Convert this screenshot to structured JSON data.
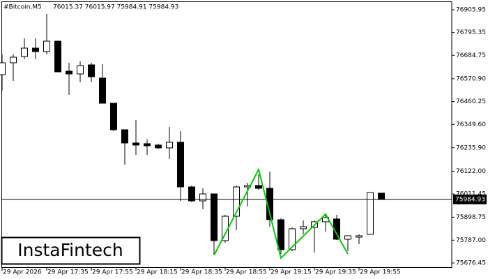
{
  "chart_data": {
    "type": "candlestick",
    "symbol": "#Bitcoin,M5",
    "info": "76015.37 76015.97 75984.91 75984.93",
    "watermark": "InstaFintech",
    "categories": [
      "29 Apr 2026",
      null,
      null,
      null,
      "29 Apr 17:35",
      null,
      null,
      null,
      "29 Apr 17:55",
      null,
      null,
      null,
      "29 Apr 18:15",
      null,
      null,
      null,
      "29 Apr 18:35",
      null,
      null,
      null,
      "29 Apr 18:55",
      null,
      null,
      null,
      "29 Apr 19:15",
      null,
      null,
      null,
      "29 Apr 19:35",
      null,
      null,
      null,
      "29 Apr 19:55",
      null,
      null
    ],
    "open": [
      76591.0,
      76648.6,
      76679.1,
      76719.7,
      76702.8,
      76753.6,
      76607.9,
      76594.4,
      76638.4,
      76574.1,
      76452.1,
      76323.4,
      76259.1,
      76255.7,
      76248.9,
      76235.4,
      76262.5,
      76045.7,
      75977.9,
      76011.8,
      75784.9,
      75903.4,
      76045.7,
      76052.4,
      76038.9,
      75886.5,
      75740.9,
      75842.5,
      75849.2,
      75876.3,
      75889.9,
      75791.7,
      75801.8,
      75815.4,
      76015.37
    ],
    "high": [
      76689.2,
      76689.2,
      76767.1,
      76767.1,
      76885.7,
      76753.6,
      76648.6,
      76655.3,
      76648.6,
      76641.8,
      76452.1,
      76323.4,
      76370.8,
      76276.0,
      76255.7,
      76337.0,
      76316.6,
      76052.4,
      76038.9,
      76011.8,
      75910.2,
      76052.4,
      76066.0,
      76106.6,
      76120.2,
      75893.3,
      75849.2,
      75883.1,
      75883.1,
      75910.2,
      75910.2,
      75808.6,
      75815.4,
      76018.6,
      76015.97
    ],
    "low": [
      76513.1,
      76560.5,
      76665.5,
      76665.5,
      76689.2,
      76604.5,
      76492.8,
      76553.7,
      76553.7,
      76452.1,
      76316.6,
      76154.1,
      76201.5,
      76201.5,
      76228.6,
      76181.2,
      75977.9,
      75971.2,
      75937.3,
      75713.8,
      75774.7,
      75835.7,
      75950.8,
      76032.1,
      75852.6,
      75720.5,
      75734.1,
      75815.4,
      75727.3,
      75828.9,
      75788.3,
      75734.1,
      75767.9,
      75815.4,
      75984.91
    ],
    "close": [
      76648.6,
      76675.7,
      76719.7,
      76702.8,
      76753.6,
      76604.5,
      76594.4,
      76635.0,
      76580.8,
      76452.1,
      76323.4,
      76259.1,
      76248.9,
      76245.5,
      76235.4,
      76262.5,
      76045.7,
      75977.9,
      76011.8,
      75784.9,
      75903.4,
      76045.7,
      76052.4,
      76038.9,
      75886.5,
      75740.9,
      75842.5,
      75852.6,
      75876.3,
      75896.7,
      75791.7,
      75808.6,
      75808.6,
      76018.6,
      75984.93
    ],
    "up_color": "#ffffff",
    "down_color": "#000000",
    "pattern": {
      "color": "#00cc00",
      "index": [
        19,
        23,
        25,
        29,
        31
      ],
      "price": [
        75713.8,
        76130.4,
        75700.2,
        75913.6,
        75720.5
      ]
    },
    "ylim": [
      75652.7,
      76953.4
    ],
    "yticks": [
      76905.95,
      76795.35,
      76684.75,
      {
        "value": 76570.9,
        "label": "76570.90"
      },
      76460.25,
      {
        "value": 76349.6,
        "label": "76349.60"
      },
      {
        "value": 76235.9,
        "label": "76235.90"
      },
      {
        "value": 76122.0,
        "label": "76122.00"
      },
      76011.45,
      75898.75,
      {
        "value": 75787.0,
        "label": "75787.00"
      },
      75676.45
    ]
  }
}
